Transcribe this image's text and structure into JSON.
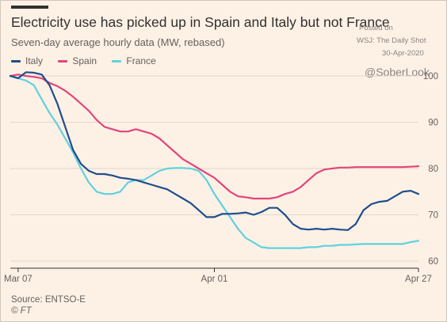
{
  "chart_data": {
    "type": "line",
    "title": "Electricity use has picked up in Spain and Italy but not France",
    "subtitle": "Seven-day average hourly data (MW, rebased)",
    "xlabel": "",
    "ylabel": "",
    "ylim": [
      60,
      100
    ],
    "yticks": [
      60,
      70,
      80,
      90,
      100
    ],
    "yaxis_position": "right",
    "grid": "horizontal",
    "legend_position": "top-left",
    "x_start": "Mar 06",
    "x_end": "Apr 28",
    "xtick_labels": [
      "Mar 07",
      "Apr 01",
      "Apr 27"
    ],
    "xtick_index": [
      1,
      26,
      52
    ],
    "source": "Source: ENTSO-E",
    "credit": "© FT",
    "series": [
      {
        "name": "Italy",
        "color": "#1f4e8c",
        "values": [
          100,
          99.5,
          100.8,
          100.7,
          100.3,
          98,
          94,
          89,
          84,
          81,
          79.5,
          78.8,
          78.8,
          78.5,
          78,
          77.8,
          77.5,
          77,
          76.5,
          76,
          75.5,
          74.5,
          73.5,
          72.5,
          71,
          69.5,
          69.5,
          70.2,
          70.2,
          70.3,
          70.5,
          70,
          70.6,
          71.5,
          71.5,
          70,
          68,
          67,
          66.8,
          67,
          66.8,
          67,
          66.8,
          66.7,
          68,
          71,
          72.3,
          72.8,
          73,
          74,
          75,
          75.2,
          74.5
        ]
      },
      {
        "name": "Spain",
        "color": "#e2457a",
        "values": [
          100,
          100.3,
          100,
          99.8,
          99.5,
          98.5,
          97.8,
          96.8,
          95.5,
          94,
          92.5,
          90.5,
          89,
          88.5,
          88,
          88,
          88.5,
          88,
          87.5,
          86.5,
          85,
          83.5,
          82,
          81,
          80,
          79,
          78,
          76.5,
          75,
          74,
          73.8,
          73.5,
          73.5,
          73.5,
          73.8,
          74.5,
          75,
          76,
          77.5,
          79,
          79.8,
          80,
          80.2,
          80.2,
          80.3,
          80.3,
          80.3,
          80.3,
          80.3,
          80.3,
          80.3,
          80.4,
          80.5
        ]
      },
      {
        "name": "France",
        "color": "#60d1de",
        "values": [
          100,
          99.5,
          99,
          98,
          95,
          92,
          89.5,
          86.5,
          83.5,
          80,
          77,
          75,
          74.5,
          74.5,
          75,
          77,
          77.5,
          77.5,
          78.5,
          79.5,
          80,
          80.1,
          80.1,
          80,
          79.5,
          77.5,
          74.5,
          72,
          69.5,
          67,
          65,
          64,
          63,
          62.8,
          62.8,
          62.8,
          62.8,
          62.8,
          63,
          63,
          63.3,
          63.3,
          63.5,
          63.5,
          63.6,
          63.7,
          63.7,
          63.7,
          63.7,
          63.7,
          63.7,
          64.1,
          64.4
        ]
      }
    ]
  },
  "watermark": {
    "posted": "Posted on",
    "outlet": "WSJ: The Daily Shot",
    "date": "30-Apr-2020",
    "handle": "@SoberLook"
  }
}
